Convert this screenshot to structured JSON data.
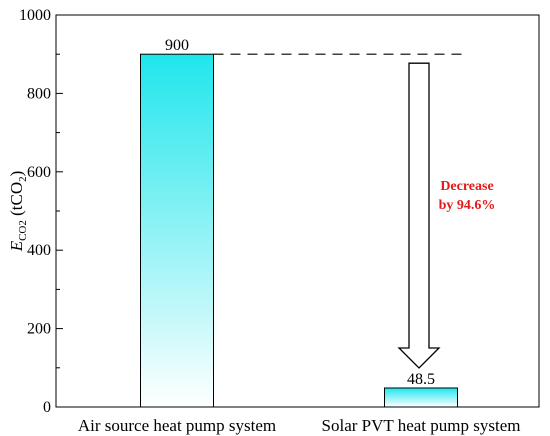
{
  "chart_data": {
    "type": "bar",
    "categories": [
      "Air source heat pump system",
      "Solar PVT heat pump system"
    ],
    "values": [
      900,
      48.5
    ],
    "value_labels": [
      "900",
      "48.5"
    ],
    "ylabel": {
      "main": "E",
      "sub": "CO2",
      "unit_open": " (tCO",
      "unit_sub": "2",
      "unit_close": ")"
    },
    "ylim": [
      0,
      1000
    ],
    "yticks": [
      0,
      200,
      400,
      600,
      800,
      1000
    ],
    "ytick_labels": [
      "0",
      "200",
      "400",
      "600",
      "800",
      "1000"
    ],
    "grid": false,
    "bar_gradient": {
      "top": "#1fe6ec",
      "bottom": "#ffffff"
    },
    "annotation": {
      "lines": [
        "Decrease",
        "by 94.6%"
      ],
      "color": "#e31a1c"
    }
  }
}
